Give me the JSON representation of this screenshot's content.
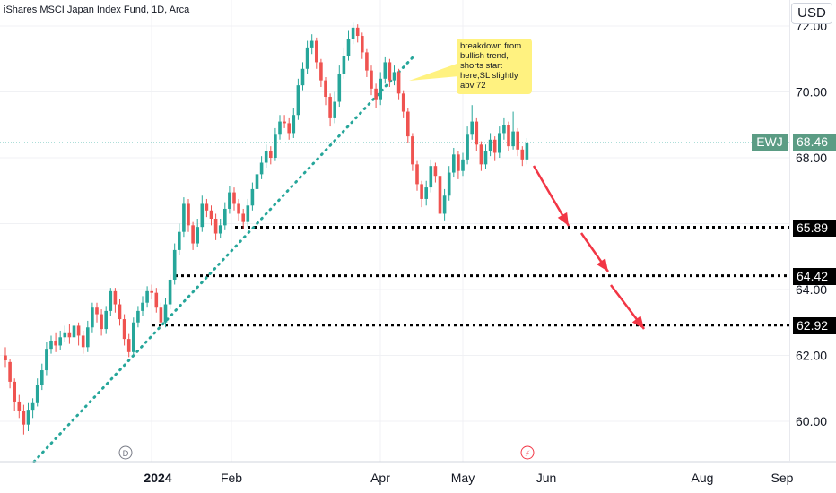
{
  "header": {
    "title": "iShares MSCI Japan Index Fund, 1D, Arca",
    "currency": "USD"
  },
  "annotation": "breakdown from bullish trend, shorts start here,SL slightly abv 72",
  "symbol_label": "EWJ",
  "last_price": "68.46",
  "levels": [
    "65.89",
    "64.42",
    "62.92"
  ],
  "event_markers": [
    "D",
    "⚡"
  ],
  "chart_data": {
    "type": "candlestick",
    "title": "iShares MSCI Japan Index Fund, 1D, Arca",
    "y_ticks": [
      60,
      62,
      64,
      66,
      68,
      70,
      72
    ],
    "y_tick_labels": [
      "60.00",
      "62.00",
      "64.00",
      "66.00",
      "68.00",
      "70.00",
      "72.00"
    ],
    "x_tick_labels": [
      "2024",
      "Feb",
      "Apr",
      "May",
      "Jun",
      "Aug",
      "Sep"
    ],
    "ylim": [
      58.9,
      72.8
    ],
    "last_price": 68.46,
    "horizontal_levels": [
      65.89,
      64.42,
      62.92
    ],
    "colors": {
      "up": "#26a69a",
      "down": "#ef5350",
      "trendline": "#26a69a",
      "arrow": "#f23645",
      "price_tag": "#5b9c84"
    },
    "candles": [
      [
        62.0,
        61.85,
        62.25,
        61.65
      ],
      [
        61.8,
        61.2,
        61.9,
        61.0
      ],
      [
        61.2,
        60.6,
        61.3,
        60.3
      ],
      [
        60.6,
        60.3,
        60.8,
        60.1
      ],
      [
        60.3,
        59.9,
        60.5,
        59.6
      ],
      [
        59.9,
        60.35,
        60.55,
        59.7
      ],
      [
        60.35,
        60.55,
        60.7,
        60.1
      ],
      [
        60.55,
        61.1,
        61.3,
        60.45
      ],
      [
        61.1,
        61.55,
        61.75,
        60.95
      ],
      [
        61.55,
        62.2,
        62.4,
        61.4
      ],
      [
        62.2,
        62.45,
        62.6,
        62.05
      ],
      [
        62.45,
        62.3,
        62.7,
        62.1
      ],
      [
        62.3,
        62.55,
        62.75,
        62.15
      ],
      [
        62.55,
        62.7,
        62.9,
        62.4
      ],
      [
        62.7,
        62.55,
        62.95,
        62.35
      ],
      [
        62.55,
        62.9,
        63.1,
        62.4
      ],
      [
        62.9,
        62.6,
        63.0,
        62.3
      ],
      [
        62.6,
        62.25,
        62.75,
        62.05
      ],
      [
        62.25,
        62.85,
        63.05,
        62.1
      ],
      [
        62.85,
        63.45,
        63.6,
        62.7
      ],
      [
        63.45,
        63.25,
        63.6,
        63.0
      ],
      [
        63.25,
        62.8,
        63.4,
        62.6
      ],
      [
        62.8,
        63.35,
        63.5,
        62.65
      ],
      [
        63.35,
        63.95,
        64.05,
        63.2
      ],
      [
        63.95,
        63.55,
        64.05,
        63.3
      ],
      [
        63.55,
        63.1,
        63.7,
        62.9
      ],
      [
        63.1,
        62.5,
        63.25,
        62.3
      ],
      [
        62.5,
        62.1,
        62.65,
        61.95
      ],
      [
        62.1,
        63.0,
        63.15,
        62.0
      ],
      [
        63.0,
        63.35,
        63.5,
        62.85
      ],
      [
        63.35,
        63.6,
        63.8,
        63.2
      ],
      [
        63.6,
        63.95,
        64.1,
        63.45
      ],
      [
        63.95,
        63.9,
        64.15,
        63.7
      ],
      [
        63.9,
        63.45,
        64.05,
        63.3
      ],
      [
        63.45,
        63.0,
        63.6,
        62.8
      ],
      [
        63.0,
        63.55,
        63.75,
        62.85
      ],
      [
        63.55,
        64.3,
        64.45,
        63.4
      ],
      [
        64.3,
        65.2,
        65.4,
        64.15
      ],
      [
        65.2,
        65.75,
        66.0,
        65.05
      ],
      [
        65.75,
        66.6,
        66.8,
        65.6
      ],
      [
        66.6,
        65.95,
        66.75,
        65.75
      ],
      [
        65.95,
        65.4,
        66.05,
        65.2
      ],
      [
        65.4,
        65.9,
        66.15,
        65.3
      ],
      [
        65.9,
        66.6,
        66.85,
        65.75
      ],
      [
        66.6,
        66.4,
        66.75,
        66.2
      ],
      [
        66.4,
        66.15,
        66.55,
        65.95
      ],
      [
        66.15,
        65.7,
        66.3,
        65.5
      ],
      [
        65.7,
        65.95,
        66.15,
        65.55
      ],
      [
        65.95,
        66.45,
        66.65,
        65.8
      ],
      [
        66.45,
        66.95,
        67.15,
        66.3
      ],
      [
        66.95,
        66.6,
        67.1,
        66.4
      ],
      [
        66.6,
        66.3,
        66.75,
        66.1
      ],
      [
        66.3,
        66.05,
        66.45,
        65.85
      ],
      [
        66.05,
        66.55,
        66.75,
        65.9
      ],
      [
        66.55,
        67.05,
        67.25,
        66.4
      ],
      [
        67.05,
        67.5,
        67.7,
        66.9
      ],
      [
        67.5,
        67.85,
        68.05,
        67.35
      ],
      [
        67.85,
        68.2,
        68.4,
        67.7
      ],
      [
        68.2,
        68.0,
        68.35,
        67.8
      ],
      [
        68.0,
        68.7,
        68.9,
        67.9
      ],
      [
        68.7,
        69.1,
        69.3,
        68.55
      ],
      [
        69.1,
        69.05,
        69.3,
        68.9
      ],
      [
        69.05,
        68.75,
        69.2,
        68.55
      ],
      [
        68.75,
        69.3,
        69.5,
        68.6
      ],
      [
        69.3,
        70.2,
        70.4,
        69.15
      ],
      [
        70.2,
        70.7,
        70.9,
        70.05
      ],
      [
        70.7,
        71.35,
        71.55,
        70.55
      ],
      [
        71.35,
        71.55,
        71.75,
        71.15
      ],
      [
        71.55,
        70.9,
        71.65,
        70.7
      ],
      [
        70.9,
        70.35,
        71.0,
        70.15
      ],
      [
        70.35,
        69.85,
        70.45,
        69.6
      ],
      [
        69.85,
        69.2,
        69.95,
        68.95
      ],
      [
        69.2,
        69.7,
        70.0,
        69.05
      ],
      [
        69.7,
        70.55,
        70.8,
        69.55
      ],
      [
        70.55,
        71.1,
        71.35,
        70.4
      ],
      [
        71.1,
        71.6,
        71.85,
        70.95
      ],
      [
        71.6,
        71.95,
        72.1,
        71.45
      ],
      [
        71.95,
        71.7,
        72.05,
        71.5
      ],
      [
        71.7,
        71.2,
        71.8,
        71.0
      ],
      [
        71.2,
        70.65,
        71.3,
        70.45
      ],
      [
        70.65,
        70.1,
        70.8,
        69.9
      ],
      [
        70.1,
        69.75,
        70.25,
        69.5
      ],
      [
        69.75,
        70.4,
        70.6,
        69.6
      ],
      [
        70.4,
        70.9,
        71.05,
        70.25
      ],
      [
        70.9,
        70.35,
        71.0,
        70.15
      ],
      [
        70.35,
        70.6,
        70.8,
        70.2
      ],
      [
        70.6,
        69.95,
        70.7,
        69.75
      ],
      [
        69.95,
        69.4,
        70.05,
        69.2
      ],
      [
        69.4,
        68.65,
        69.5,
        68.45
      ],
      [
        68.65,
        67.8,
        68.75,
        67.6
      ],
      [
        67.8,
        67.2,
        67.9,
        67.0
      ],
      [
        67.2,
        66.75,
        67.3,
        66.5
      ],
      [
        66.75,
        67.1,
        67.3,
        66.55
      ],
      [
        67.1,
        67.75,
        67.95,
        66.95
      ],
      [
        67.75,
        67.45,
        67.85,
        67.25
      ],
      [
        67.45,
        66.3,
        67.5,
        66.0
      ],
      [
        66.3,
        66.85,
        67.05,
        66.1
      ],
      [
        66.85,
        67.55,
        67.75,
        66.7
      ],
      [
        67.55,
        68.1,
        68.3,
        67.4
      ],
      [
        68.1,
        67.6,
        68.2,
        67.35
      ],
      [
        67.6,
        67.95,
        68.15,
        67.45
      ],
      [
        67.95,
        68.7,
        68.95,
        67.8
      ],
      [
        68.7,
        69.1,
        69.6,
        68.55
      ],
      [
        69.1,
        68.4,
        69.2,
        68.2
      ],
      [
        68.4,
        67.8,
        68.5,
        67.6
      ],
      [
        67.8,
        68.2,
        68.4,
        67.65
      ],
      [
        68.2,
        68.55,
        68.75,
        68.05
      ],
      [
        68.55,
        68.15,
        68.65,
        67.9
      ],
      [
        68.15,
        68.75,
        68.95,
        68.0
      ],
      [
        68.75,
        69.0,
        69.2,
        68.55
      ],
      [
        69.0,
        68.35,
        69.1,
        68.2
      ],
      [
        68.35,
        68.8,
        69.4,
        68.25
      ],
      [
        68.8,
        68.25,
        68.9,
        68.05
      ],
      [
        68.25,
        67.95,
        68.35,
        67.75
      ],
      [
        67.95,
        68.46,
        68.6,
        67.8
      ]
    ]
  }
}
